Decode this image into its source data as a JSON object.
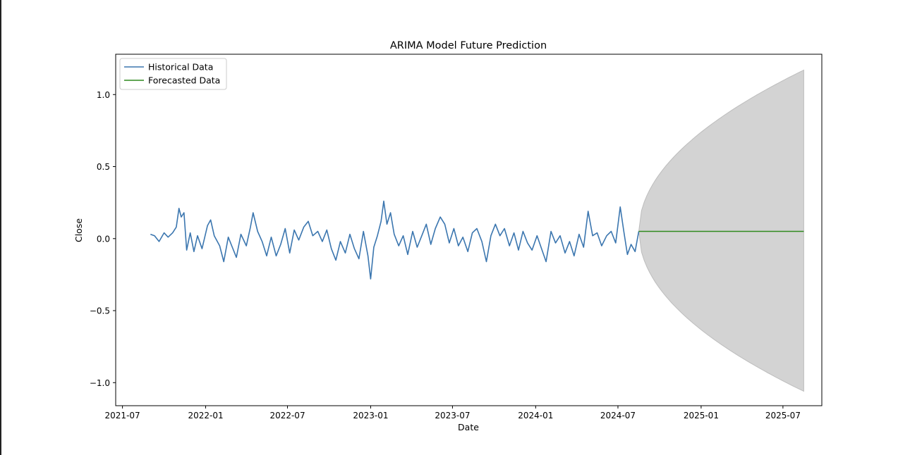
{
  "chart_data": {
    "type": "line",
    "title": "ARIMA Model Future Prediction",
    "xlabel": "Date",
    "ylabel": "Close",
    "xlim": [
      "2021-06-16",
      "2025-09-25"
    ],
    "ylim": [
      -1.16,
      1.28
    ],
    "x_ticks": [
      "2021-07",
      "2022-01",
      "2022-07",
      "2023-01",
      "2023-07",
      "2024-01",
      "2024-07",
      "2025-01",
      "2025-07"
    ],
    "y_ticks": [
      {
        "value": -1.0,
        "label": "−1.0"
      },
      {
        "value": -0.5,
        "label": "−0.5"
      },
      {
        "value": 0.0,
        "label": "0.0"
      },
      {
        "value": 0.5,
        "label": "0.5"
      },
      {
        "value": 1.0,
        "label": "1.0"
      }
    ],
    "grid": false,
    "legend_position": "top-left",
    "series": [
      {
        "name": "Historical Data",
        "color": "#3b76af",
        "points": [
          [
            "2021-09-01",
            0.03
          ],
          [
            "2021-09-10",
            0.02
          ],
          [
            "2021-09-20",
            -0.02
          ],
          [
            "2021-10-01",
            0.04
          ],
          [
            "2021-10-10",
            0.01
          ],
          [
            "2021-10-20",
            0.04
          ],
          [
            "2021-10-28",
            0.08
          ],
          [
            "2021-11-03",
            0.21
          ],
          [
            "2021-11-08",
            0.15
          ],
          [
            "2021-11-14",
            0.18
          ],
          [
            "2021-11-20",
            -0.08
          ],
          [
            "2021-11-28",
            0.04
          ],
          [
            "2021-12-06",
            -0.09
          ],
          [
            "2021-12-14",
            0.02
          ],
          [
            "2021-12-24",
            -0.07
          ],
          [
            "2022-01-05",
            0.09
          ],
          [
            "2022-01-12",
            0.13
          ],
          [
            "2022-01-20",
            0.02
          ],
          [
            "2022-02-01",
            -0.05
          ],
          [
            "2022-02-10",
            -0.16
          ],
          [
            "2022-02-20",
            0.01
          ],
          [
            "2022-03-01",
            -0.06
          ],
          [
            "2022-03-10",
            -0.13
          ],
          [
            "2022-03-20",
            0.03
          ],
          [
            "2022-04-01",
            -0.05
          ],
          [
            "2022-04-10",
            0.08
          ],
          [
            "2022-04-16",
            0.18
          ],
          [
            "2022-04-26",
            0.05
          ],
          [
            "2022-05-06",
            -0.02
          ],
          [
            "2022-05-16",
            -0.12
          ],
          [
            "2022-05-26",
            0.01
          ],
          [
            "2022-06-06",
            -0.12
          ],
          [
            "2022-06-16",
            -0.04
          ],
          [
            "2022-06-26",
            0.07
          ],
          [
            "2022-07-06",
            -0.1
          ],
          [
            "2022-07-16",
            0.06
          ],
          [
            "2022-07-26",
            -0.01
          ],
          [
            "2022-08-06",
            0.08
          ],
          [
            "2022-08-16",
            0.12
          ],
          [
            "2022-08-26",
            0.02
          ],
          [
            "2022-09-06",
            0.05
          ],
          [
            "2022-09-16",
            -0.02
          ],
          [
            "2022-09-26",
            0.06
          ],
          [
            "2022-10-06",
            -0.07
          ],
          [
            "2022-10-16",
            -0.15
          ],
          [
            "2022-10-26",
            -0.02
          ],
          [
            "2022-11-06",
            -0.1
          ],
          [
            "2022-11-16",
            0.03
          ],
          [
            "2022-11-26",
            -0.07
          ],
          [
            "2022-12-06",
            -0.14
          ],
          [
            "2022-12-16",
            0.05
          ],
          [
            "2022-12-26",
            -0.12
          ],
          [
            "2023-01-01",
            -0.28
          ],
          [
            "2023-01-08",
            -0.06
          ],
          [
            "2023-01-16",
            0.02
          ],
          [
            "2023-01-24",
            0.12
          ],
          [
            "2023-01-30",
            0.26
          ],
          [
            "2023-02-06",
            0.1
          ],
          [
            "2023-02-14",
            0.18
          ],
          [
            "2023-02-22",
            0.03
          ],
          [
            "2023-03-04",
            -0.05
          ],
          [
            "2023-03-14",
            0.02
          ],
          [
            "2023-03-24",
            -0.11
          ],
          [
            "2023-04-04",
            0.05
          ],
          [
            "2023-04-14",
            -0.06
          ],
          [
            "2023-04-24",
            0.02
          ],
          [
            "2023-05-04",
            0.1
          ],
          [
            "2023-05-14",
            -0.04
          ],
          [
            "2023-05-24",
            0.07
          ],
          [
            "2023-06-04",
            0.15
          ],
          [
            "2023-06-14",
            0.1
          ],
          [
            "2023-06-24",
            -0.03
          ],
          [
            "2023-07-04",
            0.07
          ],
          [
            "2023-07-14",
            -0.05
          ],
          [
            "2023-07-24",
            0.01
          ],
          [
            "2023-08-04",
            -0.09
          ],
          [
            "2023-08-14",
            0.04
          ],
          [
            "2023-08-24",
            0.07
          ],
          [
            "2023-09-04",
            -0.02
          ],
          [
            "2023-09-14",
            -0.16
          ],
          [
            "2023-09-24",
            0.02
          ],
          [
            "2023-10-04",
            0.1
          ],
          [
            "2023-10-14",
            0.02
          ],
          [
            "2023-10-24",
            0.07
          ],
          [
            "2023-11-04",
            -0.05
          ],
          [
            "2023-11-14",
            0.04
          ],
          [
            "2023-11-24",
            -0.08
          ],
          [
            "2023-12-04",
            0.05
          ],
          [
            "2023-12-14",
            -0.03
          ],
          [
            "2023-12-24",
            -0.08
          ],
          [
            "2024-01-04",
            0.02
          ],
          [
            "2024-01-14",
            -0.07
          ],
          [
            "2024-01-24",
            -0.16
          ],
          [
            "2024-02-04",
            0.05
          ],
          [
            "2024-02-14",
            -0.03
          ],
          [
            "2024-02-24",
            0.02
          ],
          [
            "2024-03-06",
            -0.1
          ],
          [
            "2024-03-16",
            -0.02
          ],
          [
            "2024-03-26",
            -0.12
          ],
          [
            "2024-04-06",
            0.03
          ],
          [
            "2024-04-16",
            -0.06
          ],
          [
            "2024-04-26",
            0.19
          ],
          [
            "2024-05-06",
            0.02
          ],
          [
            "2024-05-16",
            0.04
          ],
          [
            "2024-05-26",
            -0.05
          ],
          [
            "2024-06-06",
            0.02
          ],
          [
            "2024-06-16",
            0.05
          ],
          [
            "2024-06-26",
            -0.03
          ],
          [
            "2024-07-06",
            0.22
          ],
          [
            "2024-07-14",
            0.05
          ],
          [
            "2024-07-22",
            -0.11
          ],
          [
            "2024-07-30",
            -0.04
          ],
          [
            "2024-08-08",
            -0.09
          ],
          [
            "2024-08-16",
            0.05
          ]
        ]
      },
      {
        "name": "Forecasted Data",
        "color": "#2f8a1f",
        "points": [
          [
            "2024-08-16",
            0.05
          ],
          [
            "2025-08-16",
            0.05
          ]
        ]
      }
    ],
    "confidence_band": {
      "color": "#d3d3d3",
      "start": "2024-08-16",
      "end": "2025-08-16",
      "center": 0.05,
      "upper_end": 1.17,
      "lower_end": -1.06
    }
  }
}
